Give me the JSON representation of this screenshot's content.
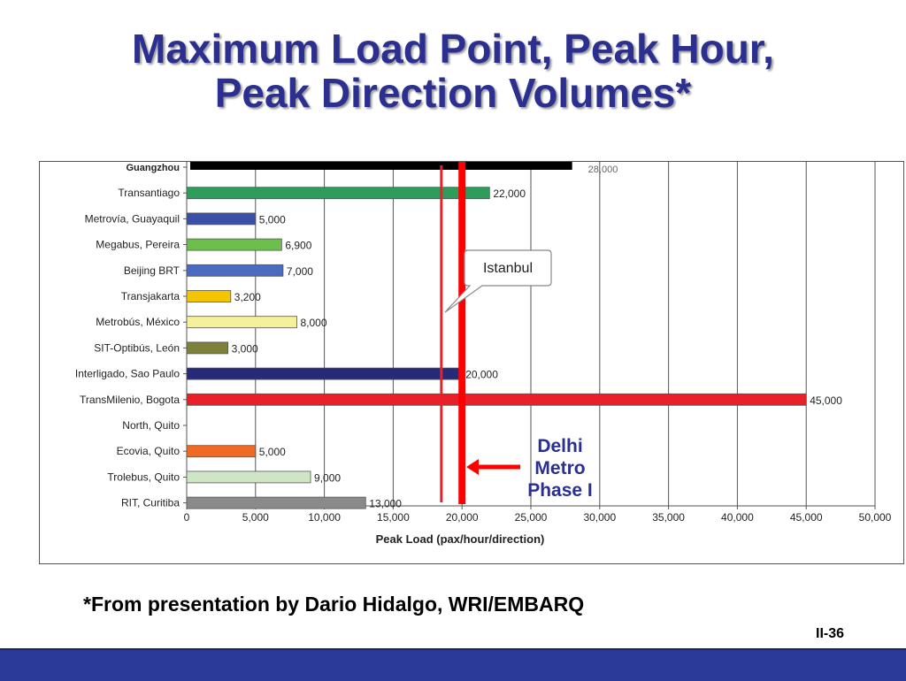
{
  "slide": {
    "title_line1": "Maximum Load Point, Peak Hour,",
    "title_line2": "Peak Direction Volumes*",
    "footnote": "*From presentation by Dario Hidalgo, WRI/EMBARQ",
    "page_number": "II-36"
  },
  "chart_data": {
    "type": "bar",
    "orientation": "horizontal",
    "title": "",
    "xlabel": "Peak Load (pax/hour/direction)",
    "ylabel": "",
    "xlim": [
      0,
      50000
    ],
    "xticks": [
      "0",
      "5,000",
      "10,000",
      "15,000",
      "20,000",
      "25,000",
      "30,000",
      "35,000",
      "40,000",
      "45,000",
      "50,000"
    ],
    "grid": "vertical",
    "legend": "none",
    "categories": [
      "Guangzhou",
      "Transantiago",
      "Metrovía, Guayaquil",
      "Megabus, Pereira",
      "Beijing BRT",
      "Transjakarta",
      "Metrobús, México",
      "SIT-Optibús, León",
      "Interligado, Sao Paulo",
      "TransMilenio, Bogota",
      "North, Quito",
      "Ecovia, Quito",
      "Trolebus, Quito",
      "RIT, Curitiba"
    ],
    "values": [
      28000,
      22000,
      5000,
      6900,
      7000,
      3200,
      8000,
      3000,
      20000,
      45000,
      null,
      5000,
      9000,
      13000
    ],
    "data_labels": [
      "28,000",
      "22,000",
      "5,000",
      "6,900",
      "7,000",
      "3,200",
      "8,000",
      "3,000",
      "20,000",
      "45,000",
      "",
      "5,000",
      "9,000",
      "13,000"
    ],
    "bar_colors": [
      "#000000",
      "#2e9c5a",
      "#3a4fa8",
      "#6bbf4a",
      "#4a6bc0",
      "#f5c400",
      "#f5f09a",
      "#7d8038",
      "#262a78",
      "#e8202a",
      "#ffffff",
      "#f06a24",
      "#cfe6c4",
      "#8a8a8a"
    ],
    "annotations": [
      {
        "type": "vertical-line",
        "x": 18500,
        "color": "#e8202a",
        "label": "Istanbul",
        "label_style": "callout"
      },
      {
        "type": "vertical-line",
        "x": 20000,
        "color": "#ff0000",
        "label": "Delhi Metro Phase I",
        "label_lines": [
          "Delhi",
          "Metro",
          "Phase I"
        ],
        "label_color": "#2b2f8f",
        "label_style": "arrow"
      }
    ]
  }
}
